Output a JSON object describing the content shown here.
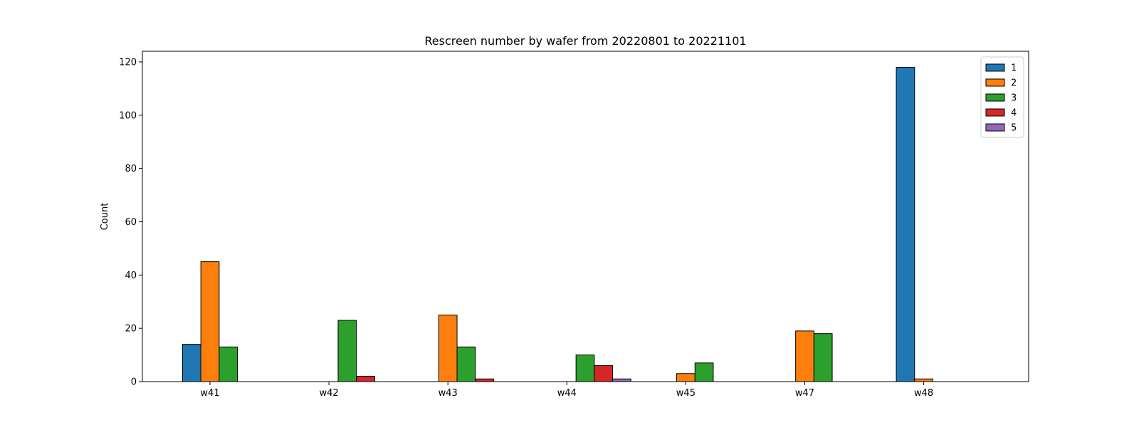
{
  "chart_data": {
    "type": "bar",
    "title": "Rescreen number  by wafer from 20220801 to 20221101",
    "xlabel": "",
    "ylabel": "Count",
    "categories": [
      "w41",
      "w42",
      "w43",
      "w44",
      "w45",
      "w47",
      "w48"
    ],
    "ylim": [
      0,
      124
    ],
    "yticks": [
      0,
      20,
      40,
      60,
      80,
      100,
      120
    ],
    "grid": false,
    "legend_position": "top-right",
    "series": [
      {
        "name": "1",
        "color": "#1f77b4",
        "values": [
          14,
          0,
          0,
          0,
          0,
          0,
          118
        ]
      },
      {
        "name": "2",
        "color": "#ff7f0e",
        "values": [
          45,
          0,
          25,
          0,
          3,
          19,
          1
        ]
      },
      {
        "name": "3",
        "color": "#2ca02c",
        "values": [
          13,
          23,
          13,
          10,
          7,
          18,
          0
        ]
      },
      {
        "name": "4",
        "color": "#d62728",
        "values": [
          0,
          2,
          1,
          6,
          0,
          0,
          0
        ]
      },
      {
        "name": "5",
        "color": "#9467bd",
        "values": [
          0,
          0,
          0,
          1,
          0,
          0,
          0
        ]
      }
    ]
  }
}
